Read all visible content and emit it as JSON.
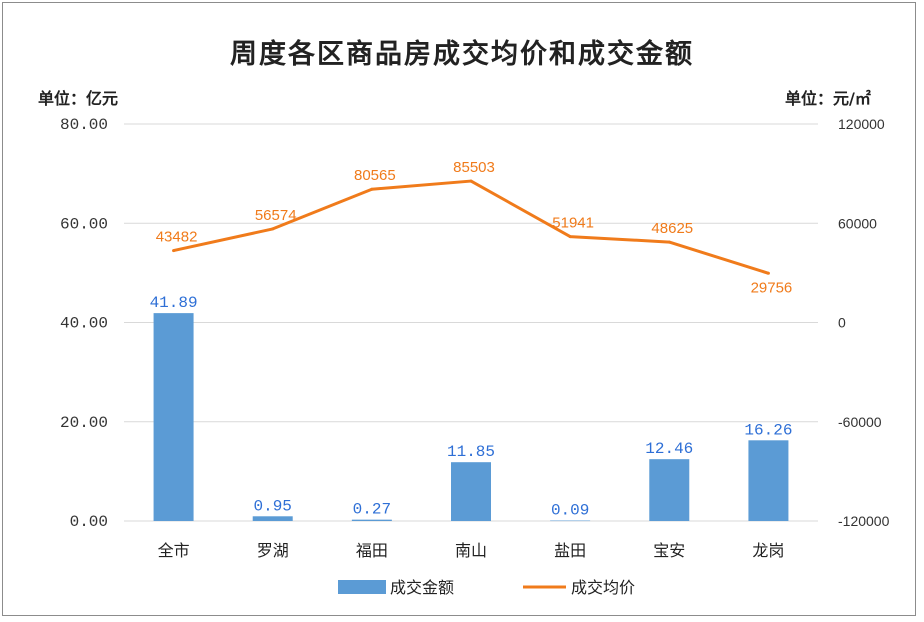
{
  "chart_data": {
    "type": "bar+line",
    "title": "周度各区商品房成交均价和成交金额",
    "left_unit": "单位：亿元",
    "right_unit": "单位：元/㎡",
    "categories": [
      "全市",
      "罗湖",
      "福田",
      "南山",
      "盐田",
      "宝安",
      "龙岗"
    ],
    "y_left": {
      "min": 0,
      "max": 80,
      "ticks": [
        "0.00",
        "20.00",
        "40.00",
        "60.00",
        "80.00"
      ]
    },
    "y_right": {
      "min": -120000,
      "max": 120000,
      "ticks": [
        "-120000",
        "-60000",
        "0",
        "60000",
        "120000"
      ]
    },
    "series": [
      {
        "name": "成交金额",
        "type": "bar",
        "axis": "left",
        "color": "#5b9bd5",
        "values": [
          41.89,
          0.95,
          0.27,
          11.85,
          0.09,
          12.46,
          16.26
        ],
        "labels": [
          "41.89",
          "0.95",
          "0.27",
          "11.85",
          "0.09",
          "12.46",
          "16.26"
        ]
      },
      {
        "name": "成交均价",
        "type": "line",
        "axis": "right",
        "color": "#f07b1b",
        "values": [
          43482,
          56574,
          80565,
          85503,
          51941,
          48625,
          29756
        ],
        "labels": [
          "43482",
          "56574",
          "80565",
          "85503",
          "51941",
          "48625",
          "29756"
        ]
      }
    ],
    "grid": "horizontal",
    "legend": "bottom"
  }
}
